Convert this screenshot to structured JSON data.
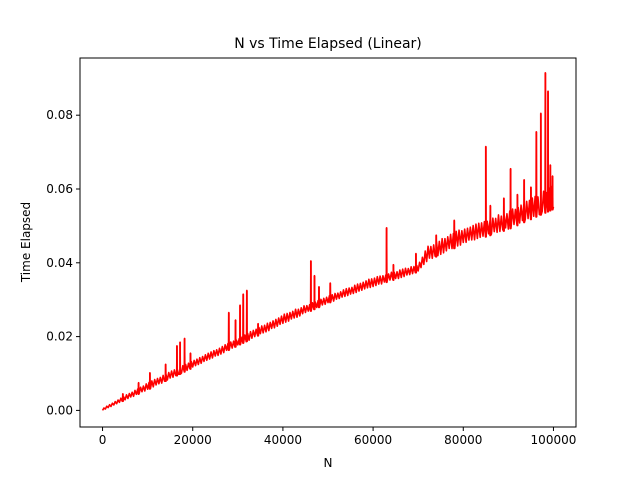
{
  "chart_data": {
    "type": "line",
    "title": "N vs Time Elapsed (Linear)",
    "xlabel": "N",
    "ylabel": "Time Elapsed",
    "xlim": [
      -5000,
      105000
    ],
    "ylim": [
      -0.0045,
      0.0955
    ],
    "x_ticks": [
      0,
      20000,
      40000,
      60000,
      80000,
      100000
    ],
    "x_tick_labels": [
      "0",
      "20000",
      "40000",
      "60000",
      "80000",
      "100000"
    ],
    "y_ticks": [
      0.0,
      0.02,
      0.04,
      0.06,
      0.08
    ],
    "y_tick_labels": [
      "0.00",
      "0.02",
      "0.04",
      "0.06",
      "0.08"
    ],
    "grid": false,
    "legend": "none",
    "line_color": "#ff0000",
    "series": [
      {
        "color": "#ff0000",
        "baseline": {
          "x": [
            0,
            10000,
            20000,
            30000,
            40000,
            50000,
            60000,
            70000,
            72000,
            80000,
            90000,
            100000
          ],
          "y": [
            0.0,
            0.0055,
            0.0115,
            0.0175,
            0.0235,
            0.029,
            0.0335,
            0.0375,
            0.0405,
            0.045,
            0.049,
            0.0545
          ]
        },
        "band": {
          "x": [
            0,
            10000,
            20000,
            30000,
            40000,
            50000,
            60000,
            70000,
            72000,
            80000,
            90000,
            100000
          ],
          "y": [
            0.0005,
            0.0075,
            0.0135,
            0.0195,
            0.026,
            0.031,
            0.036,
            0.0395,
            0.0445,
            0.0495,
            0.054,
            0.061
          ]
        },
        "spikes": [
          {
            "x": 4500,
            "y": 0.0045
          },
          {
            "x": 8000,
            "y": 0.0075
          },
          {
            "x": 10500,
            "y": 0.0102
          },
          {
            "x": 14000,
            "y": 0.0125
          },
          {
            "x": 16500,
            "y": 0.0175
          },
          {
            "x": 17200,
            "y": 0.0185
          },
          {
            "x": 18200,
            "y": 0.0195
          },
          {
            "x": 19500,
            "y": 0.0155
          },
          {
            "x": 28000,
            "y": 0.0265
          },
          {
            "x": 29500,
            "y": 0.0245
          },
          {
            "x": 30500,
            "y": 0.0285
          },
          {
            "x": 31200,
            "y": 0.0315
          },
          {
            "x": 32000,
            "y": 0.0325
          },
          {
            "x": 34500,
            "y": 0.0235
          },
          {
            "x": 46200,
            "y": 0.0405
          },
          {
            "x": 47000,
            "y": 0.0365
          },
          {
            "x": 48000,
            "y": 0.0335
          },
          {
            "x": 50500,
            "y": 0.0345
          },
          {
            "x": 63000,
            "y": 0.0495
          },
          {
            "x": 64500,
            "y": 0.0395
          },
          {
            "x": 69500,
            "y": 0.0425
          },
          {
            "x": 74000,
            "y": 0.0475
          },
          {
            "x": 78000,
            "y": 0.0515
          },
          {
            "x": 85000,
            "y": 0.0715
          },
          {
            "x": 86000,
            "y": 0.0555
          },
          {
            "x": 89000,
            "y": 0.0575
          },
          {
            "x": 90500,
            "y": 0.0655
          },
          {
            "x": 92000,
            "y": 0.0585
          },
          {
            "x": 93500,
            "y": 0.0625
          },
          {
            "x": 95000,
            "y": 0.0605
          },
          {
            "x": 96200,
            "y": 0.0755
          },
          {
            "x": 97200,
            "y": 0.0805
          },
          {
            "x": 98200,
            "y": 0.0915
          },
          {
            "x": 98800,
            "y": 0.0865
          },
          {
            "x": 99300,
            "y": 0.0665
          },
          {
            "x": 99800,
            "y": 0.0635
          }
        ]
      }
    ]
  }
}
